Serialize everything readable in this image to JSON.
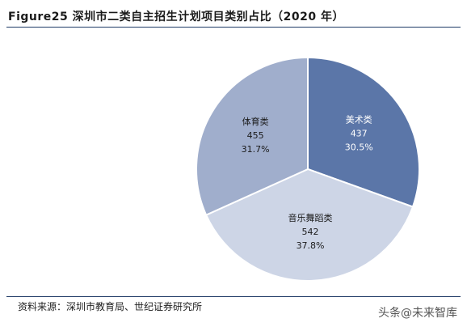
{
  "title": "Figure25 深圳市二类自主招生计划项目类别占比（2020 年）",
  "source": "资料来源：深圳市教育局、世纪证券研究所",
  "watermark": "头条@未来智库",
  "colors": {
    "slice_1": "#5b76a8",
    "slice_2": "#cdd5e6",
    "slice_3": "#a0aecc",
    "label_on_dark": "#ffffff",
    "label_on_light": "#1a1a1a",
    "separator": "#ffffff"
  },
  "chart_data": {
    "type": "pie",
    "title": "Figure25 深圳市二类自主招生计划项目类别占比（2020 年）",
    "categories": [
      "美术类",
      "音乐舞蹈类",
      "体育类"
    ],
    "values": [
      437,
      542,
      455
    ],
    "percent_labels": [
      "30.5%",
      "37.8%",
      "31.7%"
    ],
    "value_labels": [
      "437",
      "542",
      "455"
    ],
    "legend": "none",
    "start_direction": "12 o'clock, clockwise"
  }
}
